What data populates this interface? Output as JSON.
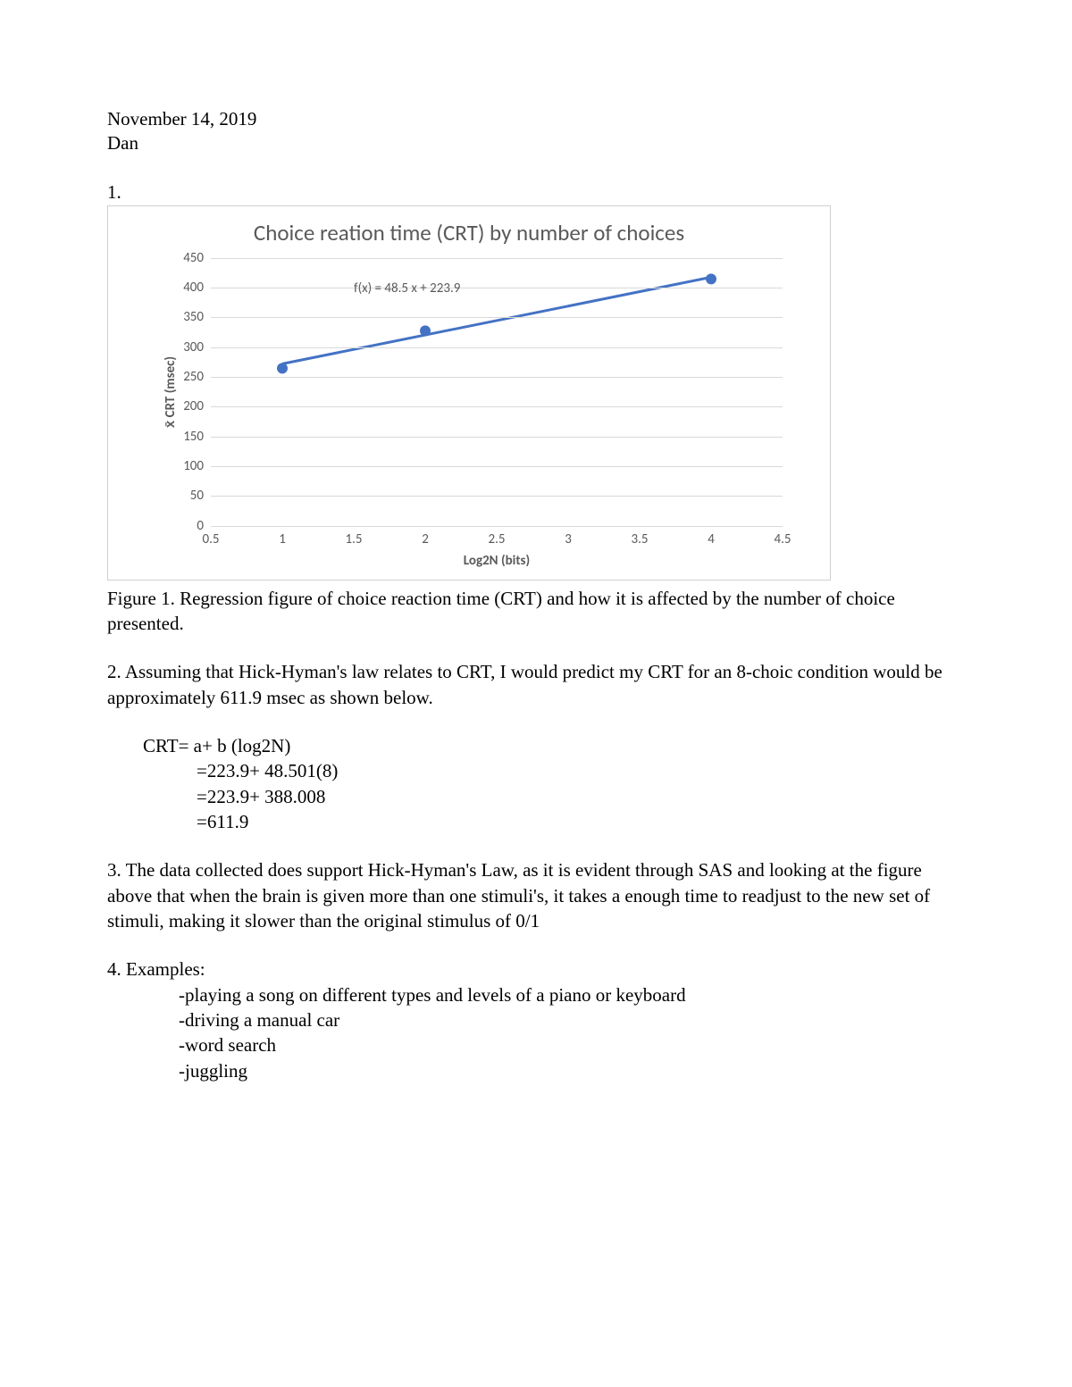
{
  "header": {
    "date": "November 14, 2019",
    "name": "Dan"
  },
  "q1": {
    "number": "1.",
    "chart": {
      "type": "scatter-with-trendline",
      "title": "Choice reation time (CRT)  by number of choices",
      "equation": "f(x) = 48.5 x + 223.9",
      "x_axis_label": "Log2N (bits)",
      "y_axis_label": "x̄ CRT (msec)",
      "xlim": [
        0.5,
        4.5
      ],
      "ylim": [
        0,
        450
      ],
      "x_ticks": [
        0.5,
        1,
        1.5,
        2,
        2.5,
        3,
        3.5,
        4,
        4.5
      ],
      "y_ticks": [
        0,
        50,
        100,
        150,
        200,
        250,
        300,
        350,
        400,
        450
      ],
      "points": [
        {
          "x": 1,
          "y": 265
        },
        {
          "x": 2,
          "y": 328
        },
        {
          "x": 4,
          "y": 415
        }
      ],
      "trendline": {
        "slope": 48.5,
        "intercept": 223.9,
        "x_start": 1,
        "x_end": 4
      },
      "marker_color": "#4472c4",
      "marker_radius": 6,
      "line_color": "#4472c4",
      "line_width": 3,
      "grid_color": "#d9d9d9",
      "tick_font_color": "#595959",
      "tick_font_size": 15,
      "title_font_size": 25,
      "background_color": "#ffffff",
      "border_color": "#d0d0d0"
    },
    "caption": "Figure 1. Regression figure of choice reaction time (CRT) and how it is affected by the number of choice presented."
  },
  "q2": {
    "text": "2. Assuming that Hick-Hyman's law relates to CRT, I would predict my CRT for an 8-choic condition would be approximately 611.9 msec as shown below.",
    "calc_lines": [
      "CRT= a+ b (log2N)",
      "=223.9+ 48.501(8)",
      "=223.9+ 388.008",
      "=611.9"
    ]
  },
  "q3": {
    "text": "3. The data collected does support Hick-Hyman's Law, as it is evident through SAS and looking at the figure above that when the brain is given more than one stimuli's, it takes a enough time to readjust to the new set of stimuli, making it slower than the original stimulus of 0/1"
  },
  "q4": {
    "label": "4. Examples:",
    "items": [
      "-playing a song on different types and levels of a piano or keyboard",
      "-driving a manual car",
      "-word search",
      "-juggling"
    ]
  }
}
